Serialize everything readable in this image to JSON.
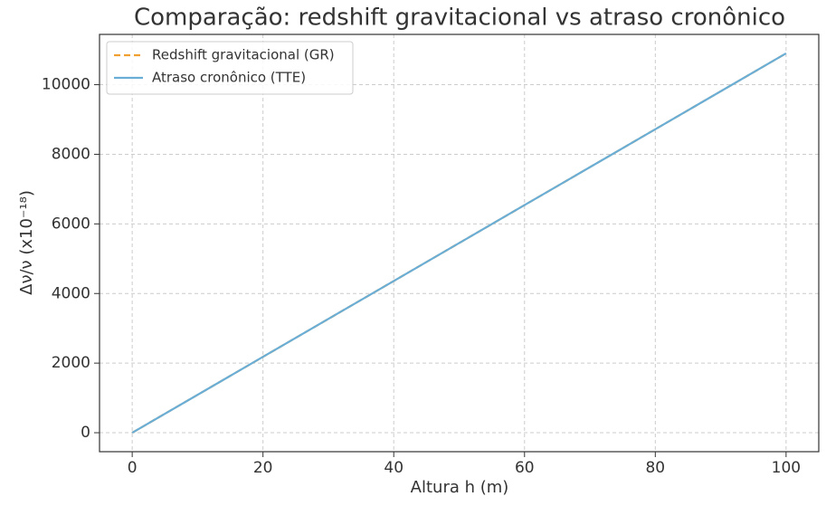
{
  "chart_data": {
    "type": "line",
    "title": "Comparação: redshift gravitacional vs atraso cronônico",
    "xlabel": "Altura h (m)",
    "ylabel": "Δν/ν (x10⁻¹⁸)",
    "x": [
      0,
      20,
      40,
      60,
      80,
      100
    ],
    "series": [
      {
        "name": "Redshift gravitacional (GR)",
        "color": "#f0a030",
        "dashed": true,
        "values": [
          0,
          2180,
          4360,
          6540,
          8720,
          10900
        ]
      },
      {
        "name": "Atraso cronônico (TTE)",
        "color": "#6aaed6",
        "dashed": false,
        "values": [
          0,
          2180,
          4360,
          6540,
          8720,
          10900
        ]
      }
    ],
    "xlim": [
      -5,
      105
    ],
    "xticks": [
      0,
      20,
      40,
      60,
      80,
      100
    ],
    "ylim": [
      -545,
      11445
    ],
    "yticks": [
      0,
      2000,
      4000,
      6000,
      8000,
      10000
    ],
    "grid": true,
    "legend": "upper left"
  }
}
